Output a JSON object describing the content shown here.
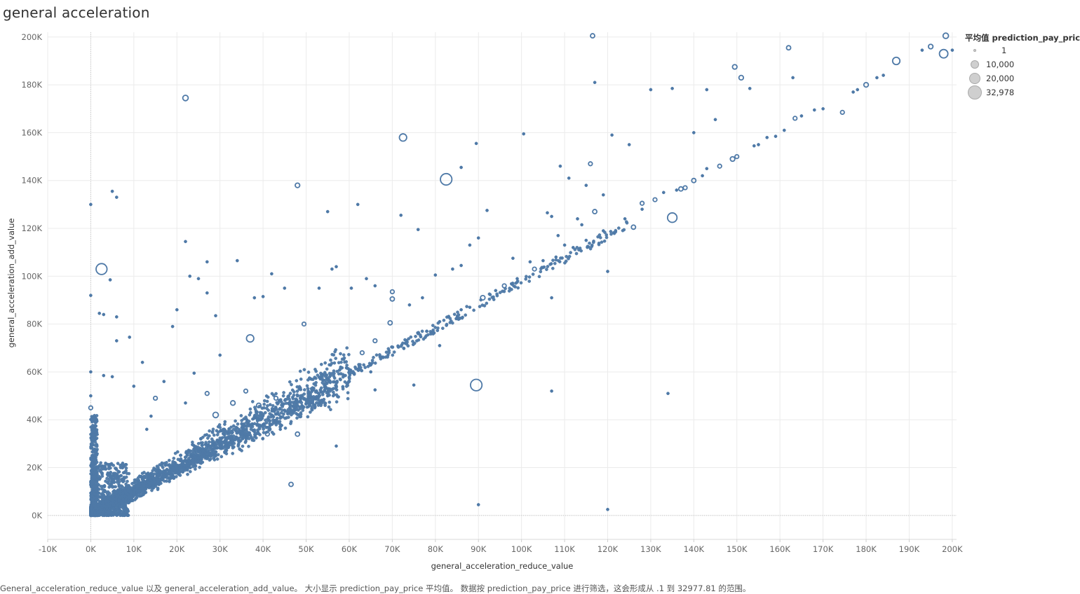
{
  "page": {
    "title": "general acceleration",
    "caption": "General_acceleration_reduce_value 以及 general_acceleration_add_value。 大小显示 prediction_pay_price 平均值。 数据按 prediction_pay_price 进行筛选，这会形成从 .1 到 32977.81 的范围。"
  },
  "legend": {
    "title": "平均值 prediction_pay_price",
    "items": [
      {
        "label": "1",
        "value": 1
      },
      {
        "label": "10,000",
        "value": 10000
      },
      {
        "label": "20,000",
        "value": 20000
      },
      {
        "label": "32,978",
        "value": 32978
      }
    ]
  },
  "colors": {
    "marks": "#4e79a7",
    "grid": "#ebebeb",
    "legend_fill": "#cfcfcf"
  },
  "chart_data": {
    "type": "scatter",
    "title": "general acceleration",
    "xlabel": "general_acceleration_reduce_value",
    "ylabel": "general_acceleration_add_value",
    "size_field": "prediction_pay_price",
    "size_range": [
      0.1,
      32977.81
    ],
    "xlim": [
      -10000,
      201000
    ],
    "ylim": [
      -10000,
      202000
    ],
    "x_ticks": [
      -10000,
      0,
      10000,
      20000,
      30000,
      40000,
      50000,
      60000,
      70000,
      80000,
      90000,
      100000,
      110000,
      120000,
      130000,
      140000,
      150000,
      160000,
      170000,
      180000,
      190000,
      200000
    ],
    "x_tick_labels": [
      "-10K",
      "0K",
      "10K",
      "20K",
      "30K",
      "40K",
      "50K",
      "60K",
      "70K",
      "80K",
      "90K",
      "100K",
      "110K",
      "120K",
      "130K",
      "140K",
      "150K",
      "160K",
      "170K",
      "180K",
      "190K",
      "200K"
    ],
    "y_ticks": [
      0,
      20000,
      40000,
      60000,
      80000,
      100000,
      120000,
      140000,
      160000,
      180000,
      200000
    ],
    "y_tick_labels": [
      "0K",
      "20K",
      "40K",
      "60K",
      "80K",
      "100K",
      "120K",
      "140K",
      "160K",
      "180K",
      "200K"
    ],
    "grid": true,
    "legend_position": "right",
    "points": [
      [
        0,
        130000,
        1500
      ],
      [
        2500,
        103000,
        20000
      ],
      [
        22000,
        174500,
        5000
      ],
      [
        5000,
        135500,
        500
      ],
      [
        6000,
        133000,
        1500
      ],
      [
        48000,
        138000,
        3500
      ],
      [
        72500,
        158000,
        9000
      ],
      [
        82500,
        140500,
        22000
      ],
      [
        86000,
        145500,
        800
      ],
      [
        89500,
        54500,
        22000
      ],
      [
        135000,
        124500,
        15000
      ],
      [
        134000,
        51000,
        500
      ],
      [
        107000,
        52000,
        500
      ],
      [
        107000,
        91000,
        800
      ],
      [
        116500,
        200500,
        3000
      ],
      [
        117000,
        181000,
        800
      ],
      [
        162000,
        195500,
        3000
      ],
      [
        163000,
        183000,
        500
      ],
      [
        149500,
        187500,
        3500
      ],
      [
        151000,
        183000,
        3500
      ],
      [
        153000,
        178500,
        800
      ],
      [
        187000,
        190000,
        9000
      ],
      [
        198000,
        193000,
        12000
      ],
      [
        198500,
        200500,
        5000
      ],
      [
        195000,
        196000,
        3500
      ],
      [
        193000,
        194500,
        500
      ],
      [
        200000,
        194500,
        500
      ],
      [
        120000,
        2500,
        500
      ],
      [
        90000,
        4500,
        500
      ],
      [
        46500,
        13000,
        3000
      ],
      [
        57000,
        29000,
        1500
      ],
      [
        48000,
        34000,
        3000
      ],
      [
        41000,
        34000,
        2500
      ],
      [
        9000,
        74500,
        800
      ],
      [
        12000,
        64000,
        500
      ],
      [
        4500,
        98500,
        500
      ],
      [
        6000,
        83000,
        500
      ],
      [
        22000,
        114500,
        500
      ],
      [
        23000,
        100000,
        500
      ],
      [
        25000,
        99000,
        1500
      ],
      [
        27000,
        106000,
        500
      ],
      [
        37000,
        74000,
        9000
      ],
      [
        42000,
        101000,
        800
      ],
      [
        49500,
        80000,
        2500
      ],
      [
        55000,
        127000,
        800
      ],
      [
        62000,
        130000,
        500
      ],
      [
        72000,
        125500,
        500
      ],
      [
        76000,
        119500,
        500
      ],
      [
        100500,
        159500,
        500
      ],
      [
        89500,
        155500,
        500
      ],
      [
        116000,
        147000,
        2500
      ],
      [
        121000,
        159000,
        800
      ],
      [
        125000,
        155000,
        800
      ],
      [
        130000,
        178000,
        500
      ],
      [
        135000,
        178500,
        500
      ],
      [
        143000,
        178000,
        500
      ],
      [
        140000,
        160000,
        500
      ],
      [
        145000,
        165500,
        500
      ],
      [
        163500,
        166000,
        2500
      ],
      [
        174500,
        168500,
        2500
      ],
      [
        180000,
        180000,
        3500
      ],
      [
        182500,
        183000,
        1500
      ],
      [
        184000,
        184000,
        500
      ],
      [
        159000,
        158500,
        1500
      ],
      [
        149000,
        149000,
        3500
      ],
      [
        140000,
        140000,
        3000
      ],
      [
        131000,
        132000,
        2500
      ],
      [
        128000,
        130500,
        2500
      ],
      [
        126000,
        120500,
        3000
      ],
      [
        117000,
        127000,
        3000
      ],
      [
        114000,
        121500,
        800
      ],
      [
        110000,
        113000,
        800
      ],
      [
        103000,
        103000,
        2500
      ],
      [
        96000,
        96000,
        2500
      ],
      [
        91000,
        91000,
        3500
      ],
      [
        86000,
        86000,
        1500
      ],
      [
        81000,
        81000,
        1500
      ],
      [
        76000,
        76000,
        1500
      ],
      [
        70000,
        93500,
        2500
      ],
      [
        70000,
        90500,
        3000
      ],
      [
        69500,
        80500,
        3000
      ],
      [
        66000,
        73000,
        2500
      ],
      [
        63000,
        68000,
        2500
      ],
      [
        58000,
        62000,
        2000
      ],
      [
        55000,
        57000,
        2000
      ],
      [
        50500,
        52000,
        1500
      ],
      [
        46000,
        47000,
        1500
      ],
      [
        43000,
        49000,
        2500
      ],
      [
        39000,
        46000,
        3500
      ],
      [
        36000,
        52000,
        2500
      ],
      [
        33000,
        47000,
        3500
      ],
      [
        29000,
        42000,
        5000
      ],
      [
        27000,
        51000,
        2500
      ],
      [
        15000,
        49000,
        2500
      ],
      [
        22000,
        47000,
        800
      ],
      [
        0,
        45000,
        2500
      ],
      [
        0,
        50000,
        800
      ],
      [
        0,
        60000,
        500
      ],
      [
        0,
        92000,
        500
      ],
      [
        81000,
        71000,
        500
      ],
      [
        66000,
        52500,
        500
      ],
      [
        75000,
        54500,
        500
      ],
      [
        105000,
        106500,
        1500
      ],
      [
        108000,
        108000,
        1500
      ],
      [
        112000,
        112000,
        1500
      ],
      [
        98000,
        107500,
        800
      ],
      [
        102000,
        106000,
        800
      ],
      [
        113000,
        124000,
        800
      ],
      [
        107000,
        125000,
        1500
      ],
      [
        128000,
        128000,
        800
      ],
      [
        133000,
        135000,
        800
      ],
      [
        138000,
        137000,
        2500
      ],
      [
        137000,
        136500,
        3000
      ],
      [
        143000,
        145000,
        800
      ],
      [
        146000,
        146000,
        2500
      ],
      [
        150000,
        150000,
        2500
      ],
      [
        154000,
        154500,
        800
      ],
      [
        161000,
        161000,
        1500
      ],
      [
        165000,
        167000,
        800
      ],
      [
        168000,
        169500,
        800
      ],
      [
        170000,
        170000,
        1500
      ],
      [
        177000,
        177000,
        800
      ],
      [
        178000,
        178000,
        800
      ],
      [
        120000,
        102000,
        500
      ],
      [
        108500,
        117000,
        500
      ],
      [
        119000,
        134000,
        500
      ],
      [
        115000,
        138000,
        500
      ],
      [
        109000,
        146000,
        500
      ],
      [
        111000,
        141000,
        500
      ],
      [
        106000,
        126500,
        1500
      ],
      [
        92000,
        127500,
        1500
      ],
      [
        90000,
        116000,
        1500
      ],
      [
        88000,
        113000,
        800
      ],
      [
        86000,
        104500,
        800
      ],
      [
        84000,
        103000,
        500
      ],
      [
        80000,
        100500,
        1500
      ],
      [
        77000,
        91000,
        500
      ],
      [
        74000,
        88000,
        500
      ],
      [
        66000,
        96000,
        500
      ],
      [
        64000,
        99000,
        500
      ],
      [
        60500,
        95000,
        500
      ],
      [
        56000,
        103000,
        500
      ],
      [
        57000,
        104000,
        1500
      ],
      [
        53000,
        95000,
        500
      ],
      [
        45000,
        95000,
        500
      ],
      [
        40000,
        91500,
        500
      ],
      [
        38000,
        91000,
        500
      ],
      [
        34000,
        106500,
        500
      ],
      [
        30000,
        67000,
        500
      ],
      [
        29000,
        83500,
        500
      ],
      [
        27000,
        93000,
        500
      ],
      [
        19000,
        79000,
        500
      ],
      [
        20000,
        86000,
        1500
      ],
      [
        24000,
        59500,
        500
      ],
      [
        17000,
        56000,
        500
      ],
      [
        14000,
        41500,
        500
      ],
      [
        13000,
        36000,
        500
      ],
      [
        10000,
        54000,
        500
      ],
      [
        2000,
        84500,
        500
      ],
      [
        3000,
        84000,
        500
      ],
      [
        6000,
        73000,
        500
      ],
      [
        5000,
        58000,
        500
      ],
      [
        3000,
        58500,
        500
      ],
      [
        28000,
        29000,
        1500
      ],
      [
        32000,
        29000,
        1500
      ],
      [
        36000,
        31000,
        500
      ],
      [
        44000,
        36000,
        500
      ],
      [
        52000,
        45000,
        800
      ],
      [
        55000,
        50000,
        800
      ],
      [
        60000,
        56000,
        1500
      ],
      [
        65000,
        63000,
        800
      ],
      [
        69000,
        67000,
        800
      ],
      [
        73000,
        72000,
        800
      ],
      [
        78000,
        77000,
        800
      ],
      [
        83000,
        83000,
        800
      ],
      [
        88000,
        87000,
        800
      ],
      [
        94000,
        94000,
        800
      ],
      [
        99000,
        99000,
        800
      ],
      [
        115000,
        115000,
        800
      ],
      [
        119000,
        119000,
        800
      ],
      [
        124000,
        124000,
        800
      ],
      [
        136000,
        136000,
        800
      ],
      [
        142000,
        142000,
        800
      ],
      [
        155000,
        155000,
        800
      ],
      [
        157000,
        158000,
        800
      ],
      [
        60000,
        60000,
        500
      ],
      [
        45000,
        44000,
        800
      ],
      [
        40000,
        38000,
        800
      ],
      [
        35000,
        34000,
        800
      ],
      [
        30000,
        29000,
        800
      ],
      [
        25000,
        24000,
        800
      ],
      [
        20000,
        19000,
        800
      ],
      [
        15000,
        14000,
        800
      ],
      [
        10000,
        9000,
        800
      ],
      [
        5000,
        5000,
        800
      ],
      [
        65000,
        60000,
        500
      ],
      [
        50000,
        48000,
        800
      ],
      [
        48000,
        50000,
        800
      ],
      [
        42000,
        42000,
        800
      ],
      [
        38000,
        35000,
        800
      ],
      [
        33000,
        31000,
        800
      ],
      [
        31000,
        36000,
        800
      ],
      [
        26000,
        28000,
        800
      ],
      [
        24000,
        22000,
        800
      ],
      [
        18000,
        21000,
        800
      ],
      [
        17000,
        16000,
        800
      ],
      [
        12000,
        15000,
        800
      ],
      [
        8000,
        10000,
        800
      ],
      [
        3000,
        4000,
        800
      ],
      [
        1000,
        1000,
        800
      ]
    ]
  }
}
